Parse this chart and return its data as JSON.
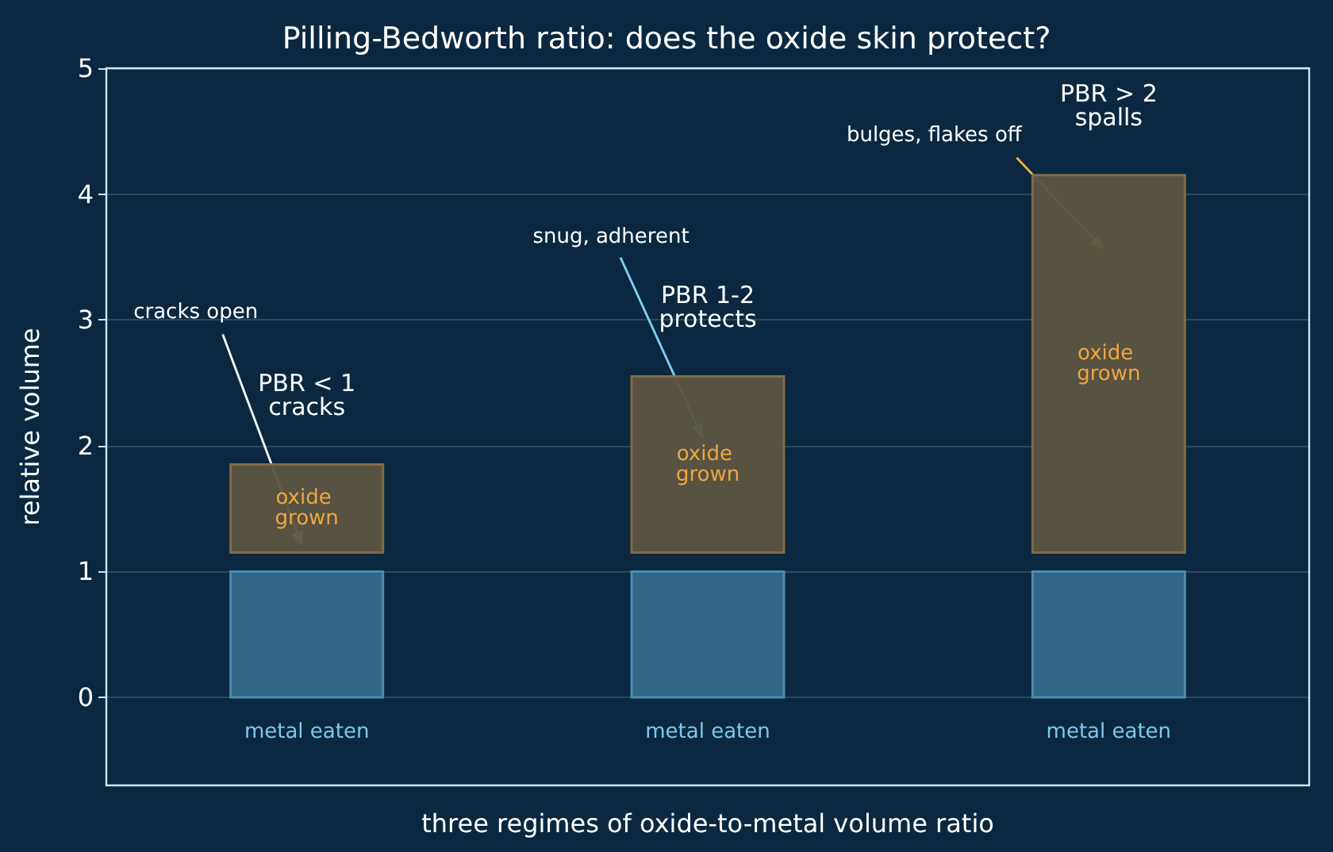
{
  "chart_data": {
    "type": "bar",
    "title": "Pilling-Bedworth ratio: does the oxide skin protect?",
    "xlabel": "three regimes of oxide-to-metal volume ratio",
    "ylabel": "relative volume",
    "categories": [
      null,
      null,
      null
    ],
    "series": [
      {
        "name": "metal eaten",
        "color": "#35698a",
        "values": [
          1,
          1,
          1
        ],
        "base": [
          0,
          0,
          0
        ]
      },
      {
        "name": "oxide grown",
        "color": "#5c5442",
        "values": [
          0.7,
          1.4,
          3.0
        ],
        "base": [
          1.15,
          1.15,
          1.15
        ]
      }
    ],
    "ylim": [
      -0.7,
      5
    ],
    "yticks": [
      0,
      1,
      2,
      3,
      4,
      5
    ],
    "grid": "y",
    "annotations": [
      "PBR < 1\ncracks",
      "PBR 1-2\nprotects",
      "PBR > 2\nspalls",
      "cracks open",
      "snug, adherent",
      "bulges, flakes off"
    ]
  }
}
